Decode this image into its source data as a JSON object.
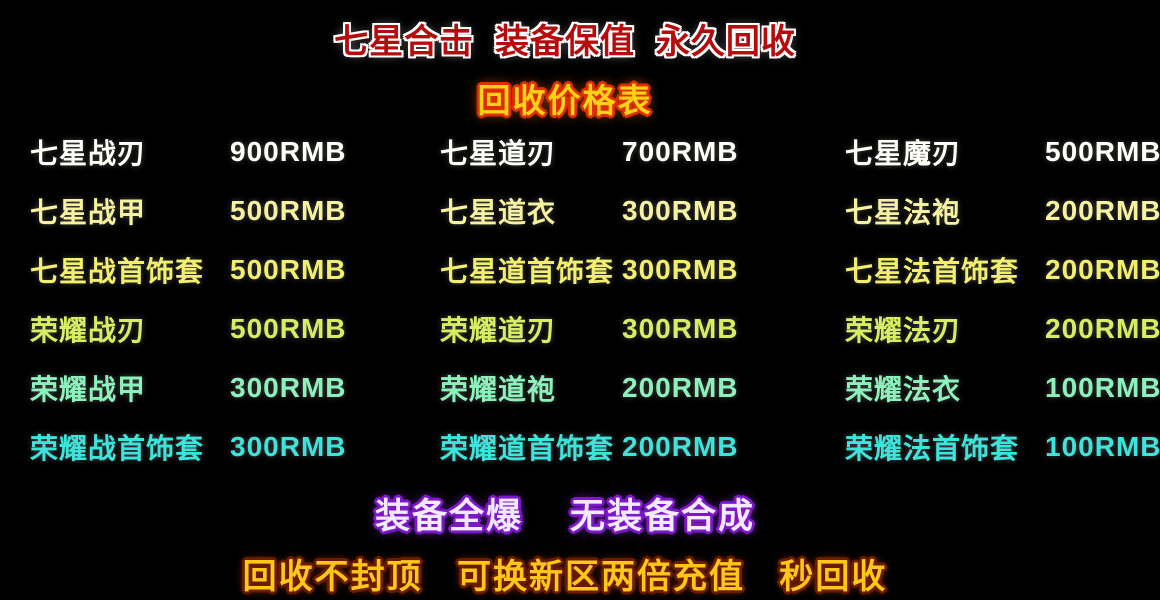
{
  "header": {
    "title": "七星合击  装备保值  永久回收",
    "subtitle": "回收价格表"
  },
  "price_table": {
    "currency": "RMB",
    "rows": [
      {
        "cells": [
          {
            "item": "七星战刃",
            "price": "900RMB"
          },
          {
            "item": "七星道刃",
            "price": "700RMB"
          },
          {
            "item": "七星魔刃",
            "price": "500RMB"
          }
        ]
      },
      {
        "cells": [
          {
            "item": "七星战甲",
            "price": "500RMB"
          },
          {
            "item": "七星道衣",
            "price": "300RMB"
          },
          {
            "item": "七星法袍",
            "price": "200RMB"
          }
        ]
      },
      {
        "cells": [
          {
            "item": "七星战首饰套",
            "price": "500RMB"
          },
          {
            "item": "七星道首饰套",
            "price": "300RMB"
          },
          {
            "item": "七星法首饰套",
            "price": "200RMB"
          }
        ]
      },
      {
        "cells": [
          {
            "item": "荣耀战刃",
            "price": "500RMB"
          },
          {
            "item": "荣耀道刃",
            "price": "300RMB"
          },
          {
            "item": "荣耀法刃",
            "price": "200RMB"
          }
        ]
      },
      {
        "cells": [
          {
            "item": "荣耀战甲",
            "price": "300RMB"
          },
          {
            "item": "荣耀道袍",
            "price": "200RMB"
          },
          {
            "item": "荣耀法衣",
            "price": "100RMB"
          }
        ]
      },
      {
        "cells": [
          {
            "item": "荣耀战首饰套",
            "price": "300RMB"
          },
          {
            "item": "荣耀道首饰套",
            "price": "200RMB"
          },
          {
            "item": "荣耀法首饰套",
            "price": "100RMB"
          }
        ]
      }
    ]
  },
  "footer": {
    "line1": "装备全爆    无装备合成",
    "line2": "回收不封顶   可换新区两倍充值   秒回收"
  },
  "colors": {
    "background": "#000000",
    "title_text": "#b50d0d",
    "title_outline": "#ffffff",
    "subtitle_text": "#ffd215",
    "subtitle_outline": "#dd2e00",
    "row_colors": [
      "#fffef8",
      "#f7f2a0",
      "#f3ef6e",
      "#d6ee62",
      "#8df1bb",
      "#3ce4dc"
    ],
    "footer1_text": "#f4eaff",
    "footer1_outline": "#7d18c8",
    "footer2_text": "#ffc61a",
    "footer2_outline": "#6b1c00"
  }
}
